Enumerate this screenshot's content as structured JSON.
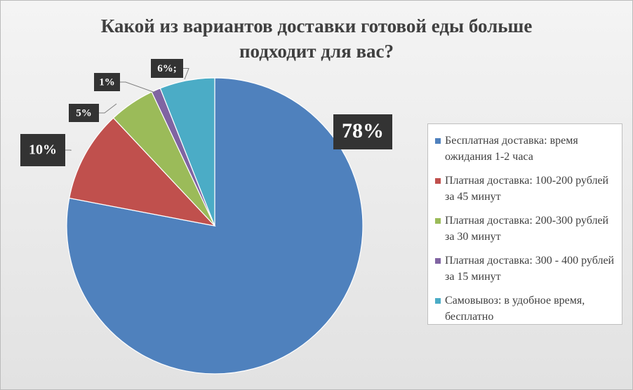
{
  "chart_data": {
    "type": "pie",
    "title": "Какой из вариантов доставки готовой еды больше подходит для вас?",
    "categories": [
      "Бесплатная доставка: время ожидания 1-2 часа",
      "Платная доставка: 100-200 рублей за 45 минут",
      "Платная доставка: 200-300 рублей за 30 минут",
      "Платная доставка: 300 - 400 рублей за 15 минут",
      "Самовывоз: в удобное время, бесплатно"
    ],
    "values": [
      78,
      10,
      5,
      1,
      6
    ],
    "value_labels": [
      "78%",
      "10%",
      "5%",
      "1%",
      "6%;"
    ],
    "colors": [
      "#4f81bd",
      "#c0504d",
      "#9bbb59",
      "#8064a2",
      "#4bacc6"
    ],
    "legend": "right"
  }
}
